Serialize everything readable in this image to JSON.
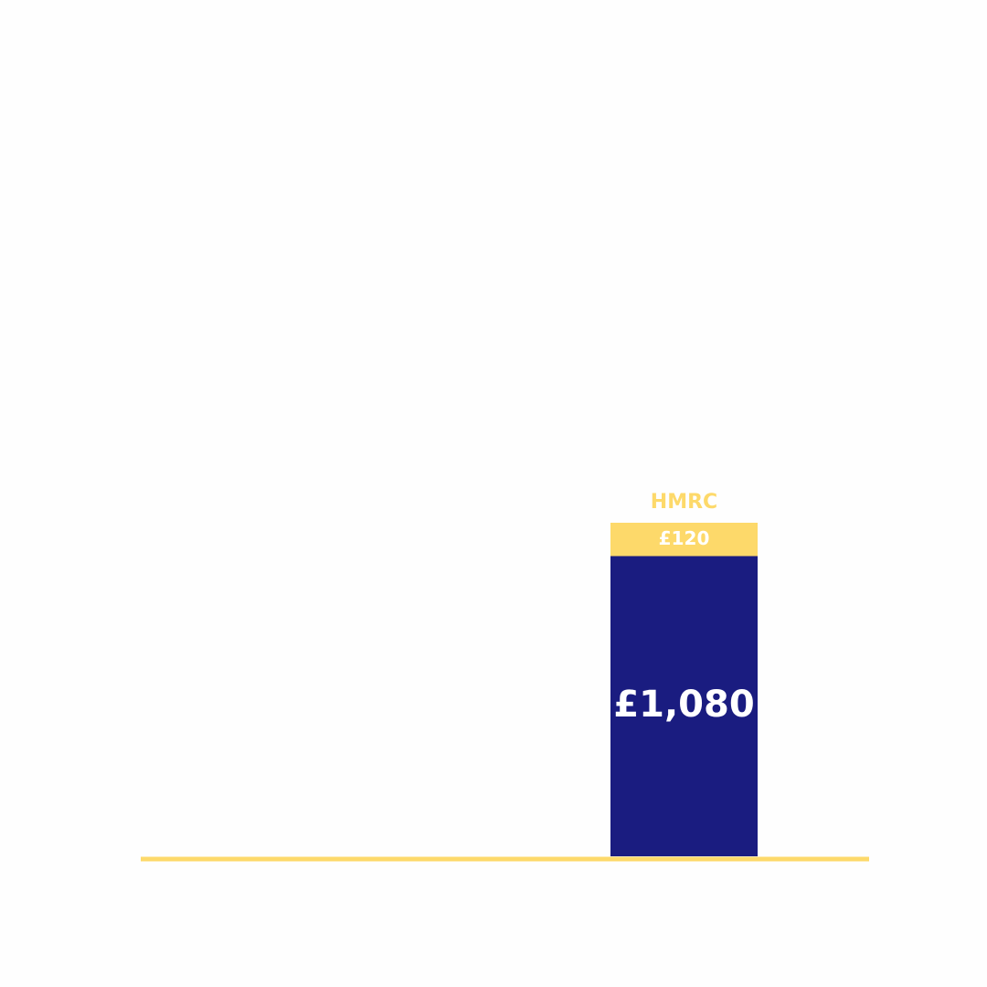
{
  "chart_data": {
    "type": "stacked-bar",
    "categories": [
      null
    ],
    "series": [
      {
        "color": "#1a1c80",
        "values": [
          1080
        ],
        "value_labels": [
          "£1,080"
        ]
      },
      {
        "name": "HMRC",
        "color": "#fdd96a",
        "values": [
          120
        ],
        "value_labels": [
          "£120"
        ]
      }
    ]
  }
}
